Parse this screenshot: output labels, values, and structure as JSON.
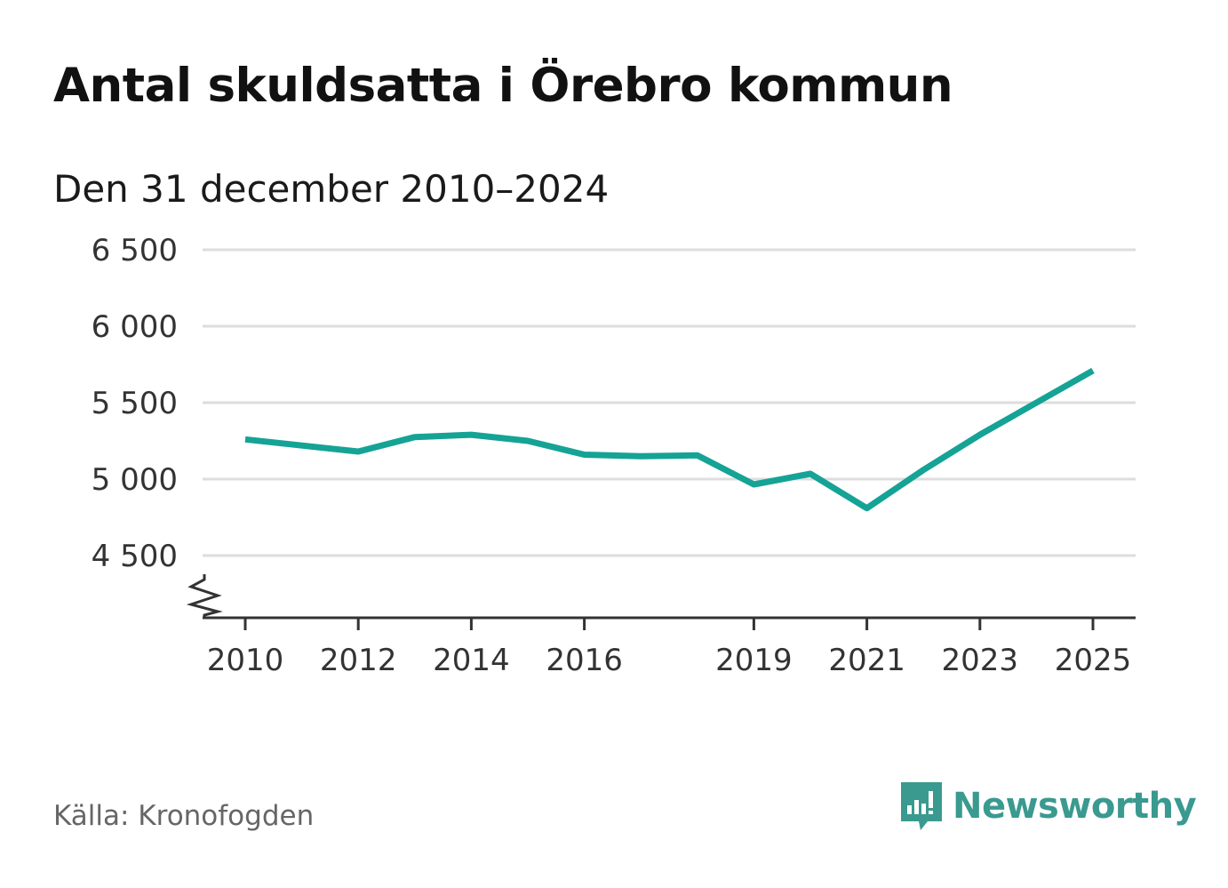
{
  "header": {
    "title": "Antal skuldsatta i Örebro kommun",
    "subtitle": "Den 31 december 2010–2024"
  },
  "footer": {
    "source": "Källa: Kronofogden",
    "brand": "Newsworthy"
  },
  "colors": {
    "line": "#15a396",
    "grid": "#dddddd",
    "axis": "#333333",
    "brand": "#3a9a8f"
  },
  "chart_data": {
    "type": "line",
    "title": "Antal skuldsatta i Örebro kommun",
    "subtitle": "Den 31 december 2010–2024",
    "x": [
      2010,
      2011,
      2012,
      2013,
      2014,
      2015,
      2016,
      2017,
      2018,
      2019,
      2020,
      2021,
      2022,
      2023,
      2024,
      2025
    ],
    "series": [
      {
        "values": [
          5260,
          5220,
          5180,
          5275,
          5290,
          5250,
          5160,
          5150,
          5155,
          4965,
          5035,
          4810,
          5060,
          5290,
          5500,
          5710
        ]
      }
    ],
    "x_ticks": [
      "2010",
      "2012",
      "2014",
      "2016",
      "2019",
      "2021",
      "2023",
      "2025"
    ],
    "x_tick_values": [
      2010,
      2012,
      2014,
      2016,
      2019,
      2021,
      2023,
      2025
    ],
    "y_ticks": [
      "4 500",
      "5 000",
      "5 500",
      "6 000",
      "6 500"
    ],
    "y_tick_values": [
      4500,
      5000,
      5500,
      6000,
      6500
    ],
    "xlim": [
      2010,
      2025
    ],
    "ylim": [
      4500,
      6500
    ],
    "y_axis_break": true,
    "grid": true,
    "legend": "none"
  }
}
